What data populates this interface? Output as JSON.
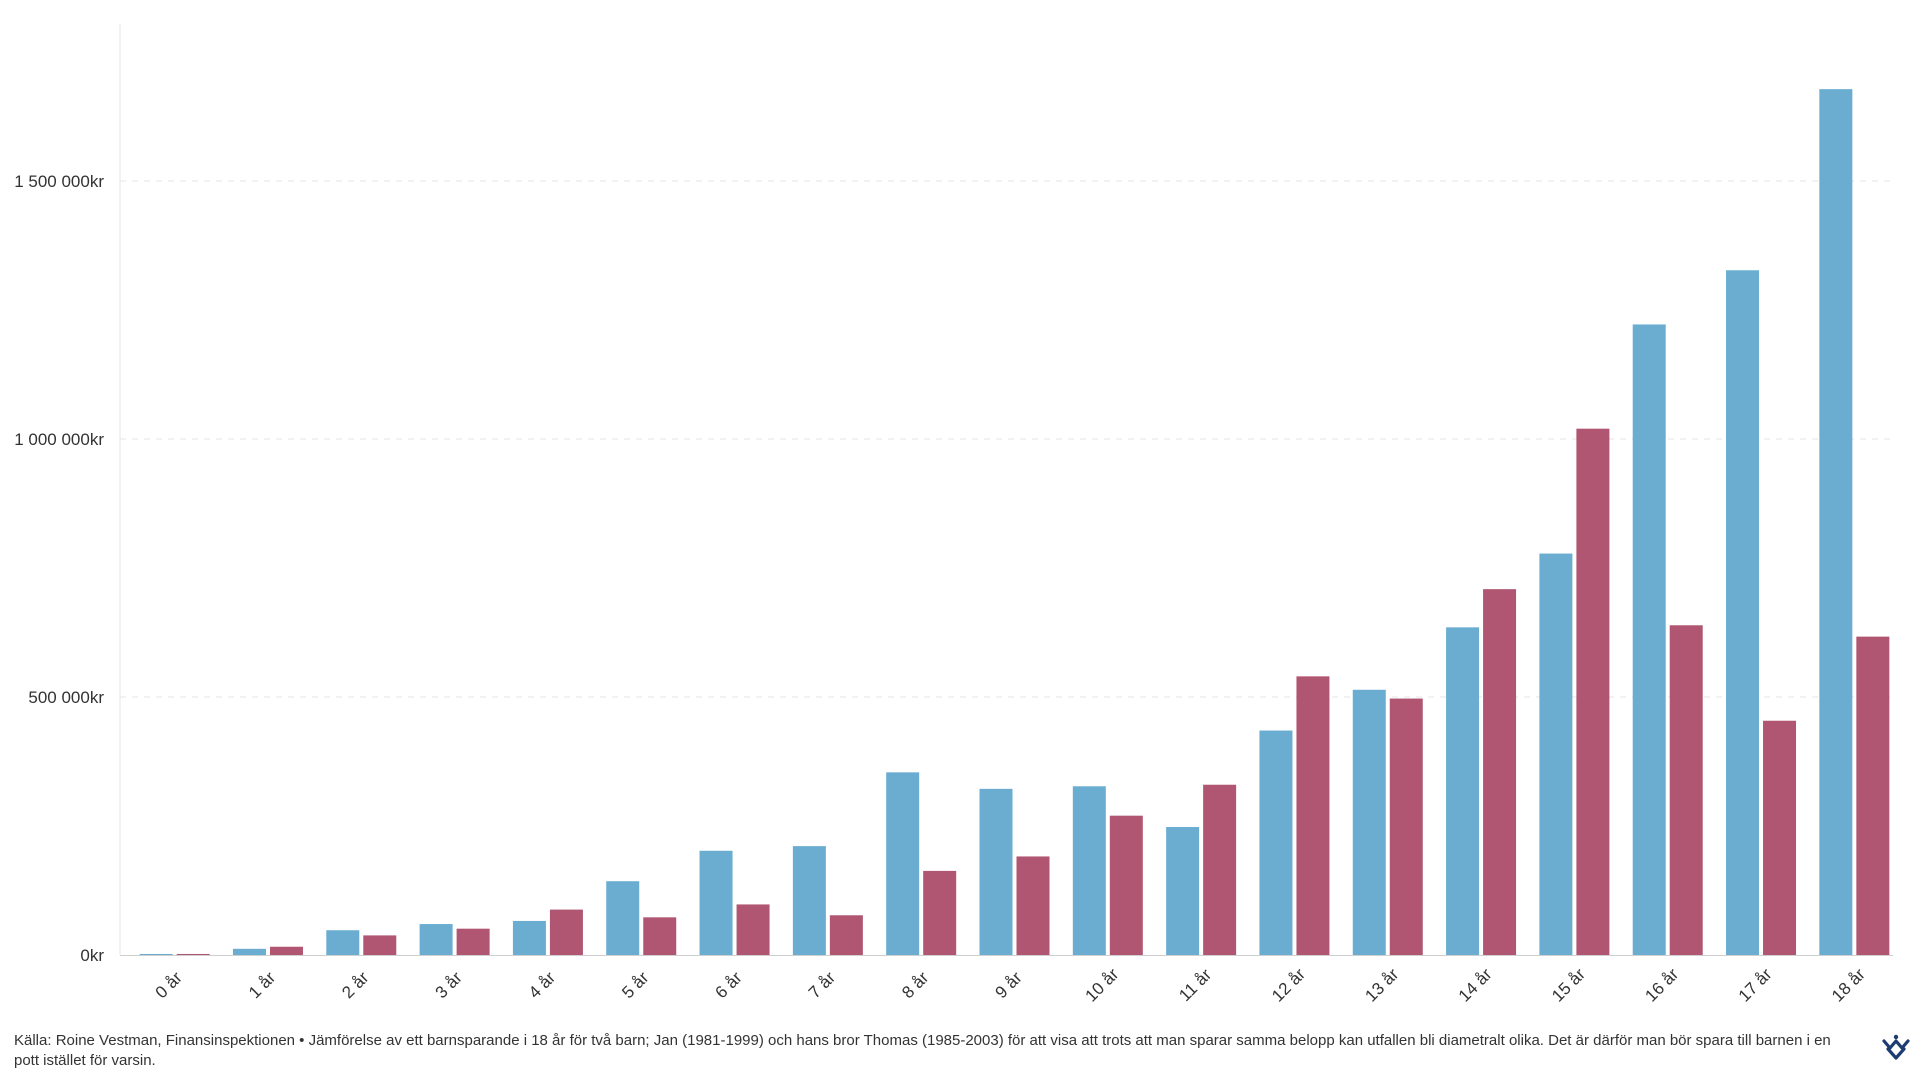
{
  "chart_data": {
    "type": "bar",
    "title": "",
    "xlabel": "",
    "ylabel": "",
    "categories": [
      "0 år",
      "1 år",
      "2 år",
      "3 år",
      "4 år",
      "5 år",
      "6 år",
      "7 år",
      "8 år",
      "9 år",
      "10 år",
      "11 år",
      "12 år",
      "13 år",
      "14 år",
      "15 år",
      "16 år",
      "17 år",
      "18 år"
    ],
    "series": [
      {
        "color": "#6aadd1",
        "values": [
          2000,
          12000,
          48000,
          60000,
          66000,
          143000,
          202000,
          211000,
          354000,
          322000,
          327000,
          248000,
          435000,
          514000,
          635000,
          778000,
          1222000,
          1327000,
          1678000
        ]
      },
      {
        "color": "#b05672",
        "values": [
          2000,
          16000,
          38000,
          51000,
          88000,
          73000,
          98000,
          77000,
          163000,
          191000,
          270000,
          330000,
          540000,
          497000,
          709000,
          1020000,
          639000,
          454000,
          617000
        ]
      }
    ],
    "ylim": [
      0,
      1800000
    ],
    "yticks": [
      {
        "value": 0,
        "label": "0kr"
      },
      {
        "value": 500000,
        "label": "500 000kr"
      },
      {
        "value": 1000000,
        "label": "1 000 000kr"
      },
      {
        "value": 1500000,
        "label": "1 500 000kr"
      }
    ],
    "grid": true,
    "legend": "none"
  },
  "footer": {
    "source": "Källa: Roine Vestman, Finansinspektionen • Jämförelse av ett barnsparande i 18 år för två barn; Jan (1981-1999) och hans bror Thomas (1985-2003) för att visa att trots att man sparar samma belopp kan utfallen bli diametralt olika. Det är därför man bör spara till barnen i en pott istället för varsin."
  },
  "logo": {
    "icon": "brand-logo-icon",
    "color": "#1d3d72"
  }
}
